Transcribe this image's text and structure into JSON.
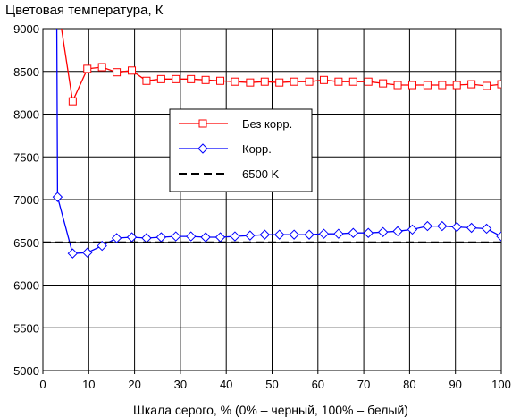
{
  "chart_data": {
    "type": "line",
    "title": "Цветовая температура, К",
    "xlabel": "Шкала серого, % (0% – черный, 100% – белый)",
    "ylabel": "",
    "xlim": [
      0,
      100
    ],
    "ylim": [
      5000,
      9000
    ],
    "xticks": [
      "0",
      "10",
      "20",
      "30",
      "40",
      "50",
      "60",
      "70",
      "80",
      "90",
      "100"
    ],
    "yticks": [
      "5000",
      "5500",
      "6000",
      "6500",
      "7000",
      "7500",
      "8000",
      "8500",
      "9000"
    ],
    "grid": true,
    "legend_position": "center",
    "series": [
      {
        "name": "Без корр.",
        "color": "#ff0000",
        "marker": "square",
        "x": [
          3.2,
          6.5,
          9.7,
          12.9,
          16.1,
          19.4,
          22.6,
          25.8,
          29.0,
          32.3,
          35.5,
          38.7,
          41.9,
          45.2,
          48.4,
          51.6,
          54.8,
          58.1,
          61.3,
          64.5,
          67.7,
          71.0,
          74.2,
          77.4,
          80.6,
          83.9,
          87.1,
          90.3,
          93.5,
          96.8,
          100
        ],
        "values": [
          9300,
          8150,
          8530,
          8550,
          8490,
          8510,
          8390,
          8410,
          8410,
          8410,
          8400,
          8390,
          8380,
          8370,
          8380,
          8370,
          8380,
          8380,
          8400,
          8380,
          8380,
          8380,
          8360,
          8340,
          8340,
          8340,
          8340,
          8340,
          8350,
          8330,
          8350
        ]
      },
      {
        "name": "Корр.",
        "color": "#0000ff",
        "marker": "diamond",
        "x": [
          3.2,
          6.5,
          9.7,
          12.9,
          16.1,
          19.4,
          22.6,
          25.8,
          29.0,
          32.3,
          35.5,
          38.7,
          41.9,
          45.2,
          48.4,
          51.6,
          54.8,
          58.1,
          61.3,
          64.5,
          67.7,
          71.0,
          74.2,
          77.4,
          80.6,
          83.9,
          87.1,
          90.3,
          93.5,
          96.8,
          100
        ],
        "values": [
          7030,
          6370,
          6380,
          6460,
          6550,
          6560,
          6550,
          6560,
          6570,
          6570,
          6560,
          6560,
          6570,
          6580,
          6590,
          6590,
          6590,
          6590,
          6600,
          6600,
          6610,
          6610,
          6620,
          6630,
          6650,
          6690,
          6690,
          6680,
          6670,
          6660,
          6570
        ]
      },
      {
        "name": "6500 K",
        "color": "#000000",
        "style": "dashed",
        "x": [
          0,
          100
        ],
        "values": [
          6500,
          6500
        ]
      }
    ]
  }
}
